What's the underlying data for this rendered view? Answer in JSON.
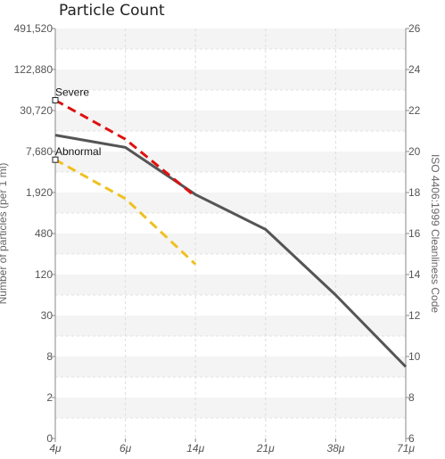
{
  "chart_data": {
    "type": "line",
    "title": "Particle Count",
    "xlabel": "",
    "ylabel": "Number of particles (per 1 ml)",
    "y2label": "ISO 4406:1999 Cleanliness Code",
    "categories": [
      "4μ",
      "6μ",
      "14μ",
      "21μ",
      "38μ",
      "71μ"
    ],
    "y_ticks": [
      "0",
      "2",
      "8",
      "30",
      "120",
      "480",
      "1,920",
      "7,680",
      "30,720",
      "122,880",
      "491,520"
    ],
    "y2_ticks": [
      "6",
      "8",
      "10",
      "12",
      "14",
      "16",
      "18",
      "20",
      "22",
      "24",
      "26"
    ],
    "y2lim": [
      6,
      26
    ],
    "grid": true,
    "series": [
      {
        "color": "#555555",
        "dashed": false,
        "values": [
          20.8,
          20.2,
          17.9,
          16.2,
          13.0,
          9.5
        ]
      },
      {
        "name": "Severe",
        "color": "#e01010",
        "dashed": true,
        "values": [
          22.5,
          20.6,
          17.8,
          null,
          null,
          null
        ]
      },
      {
        "name": "Abnormal",
        "color": "#f0c020",
        "dashed": true,
        "values": [
          19.6,
          17.7,
          14.5,
          null,
          null,
          null
        ]
      }
    ],
    "markers": [
      {
        "label": "Severe",
        "x": "4μ",
        "y2": 22.5
      },
      {
        "label": "Abnormal",
        "x": "4μ",
        "y2": 19.6
      }
    ]
  }
}
